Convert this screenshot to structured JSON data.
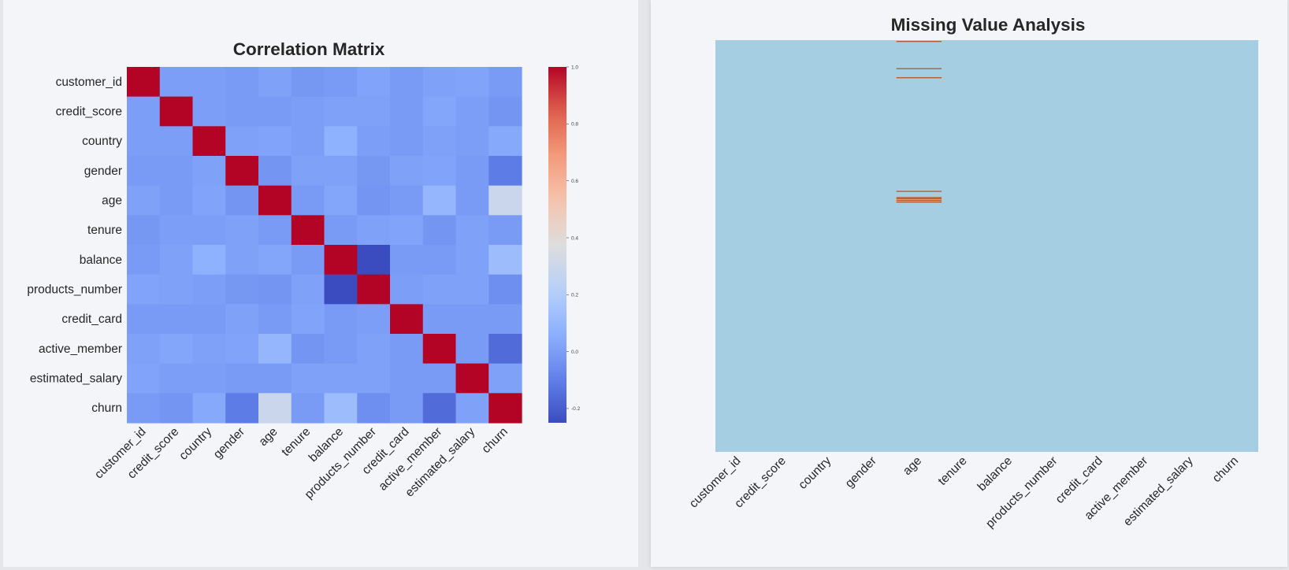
{
  "chart_data": [
    {
      "type": "heatmap",
      "title": "Correlation Matrix",
      "colormap": "coolwarm",
      "colorbar": {
        "min": -0.25,
        "max": 1.0,
        "ticks": [
          1.0,
          0.8,
          0.6,
          0.4,
          0.2,
          0.0,
          -0.2
        ],
        "tick_labels": [
          "1.0",
          "0.8",
          "0.6",
          "0.4",
          "0.2",
          "0.0",
          "-0.2"
        ]
      },
      "labels": [
        "customer_id",
        "credit_score",
        "country",
        "gender",
        "age",
        "tenure",
        "balance",
        "products_number",
        "credit_card",
        "active_member",
        "estimated_salary",
        "churn"
      ],
      "matrix": [
        [
          1.0,
          0.0,
          0.0,
          -0.01,
          0.01,
          -0.02,
          -0.01,
          0.02,
          -0.01,
          0.01,
          0.02,
          -0.01
        ],
        [
          0.0,
          1.0,
          0.0,
          -0.01,
          -0.01,
          0.0,
          0.01,
          0.01,
          -0.01,
          0.03,
          0.0,
          -0.03
        ],
        [
          0.0,
          0.0,
          1.0,
          0.01,
          0.02,
          0.0,
          0.07,
          0.0,
          -0.01,
          0.01,
          0.0,
          0.04
        ],
        [
          -0.01,
          -0.01,
          0.01,
          1.0,
          -0.03,
          0.01,
          0.01,
          -0.02,
          0.01,
          0.02,
          -0.01,
          -0.11
        ],
        [
          0.01,
          -0.01,
          0.02,
          -0.03,
          1.0,
          -0.01,
          0.03,
          -0.03,
          -0.01,
          0.09,
          -0.01,
          0.29
        ],
        [
          -0.02,
          0.0,
          0.0,
          0.01,
          -0.01,
          1.0,
          -0.01,
          0.01,
          0.02,
          -0.03,
          0.01,
          -0.01
        ],
        [
          -0.01,
          0.01,
          0.07,
          0.01,
          0.03,
          -0.01,
          1.0,
          -0.3,
          -0.01,
          -0.01,
          0.01,
          0.12
        ],
        [
          0.02,
          0.01,
          0.0,
          -0.02,
          -0.03,
          0.01,
          -0.3,
          1.0,
          0.0,
          0.01,
          0.01,
          -0.05
        ],
        [
          -0.01,
          -0.01,
          -0.01,
          0.01,
          -0.01,
          0.02,
          -0.01,
          0.0,
          1.0,
          -0.01,
          -0.01,
          -0.01
        ],
        [
          0.01,
          0.03,
          0.01,
          0.02,
          0.09,
          -0.03,
          -0.01,
          0.01,
          -0.01,
          1.0,
          -0.01,
          -0.16
        ],
        [
          0.02,
          0.0,
          0.0,
          -0.01,
          -0.01,
          0.01,
          0.01,
          0.01,
          -0.01,
          -0.01,
          1.0,
          0.01
        ],
        [
          -0.01,
          -0.03,
          0.04,
          -0.11,
          0.29,
          -0.01,
          0.12,
          -0.05,
          -0.01,
          -0.16,
          0.01,
          1.0
        ]
      ]
    },
    {
      "type": "heatmap",
      "title": "Missing Value Analysis",
      "colors": {
        "present": "#a6cee3",
        "missing": "#b15928"
      },
      "columns": [
        "customer_id",
        "credit_score",
        "country",
        "gender",
        "age",
        "tenure",
        "balance",
        "products_number",
        "credit_card",
        "active_member",
        "estimated_salary",
        "churn"
      ],
      "missing_column": "age",
      "missing_positions": [
        0.002,
        0.068,
        0.09,
        0.366,
        0.381,
        0.384,
        0.388,
        0.392
      ]
    }
  ]
}
